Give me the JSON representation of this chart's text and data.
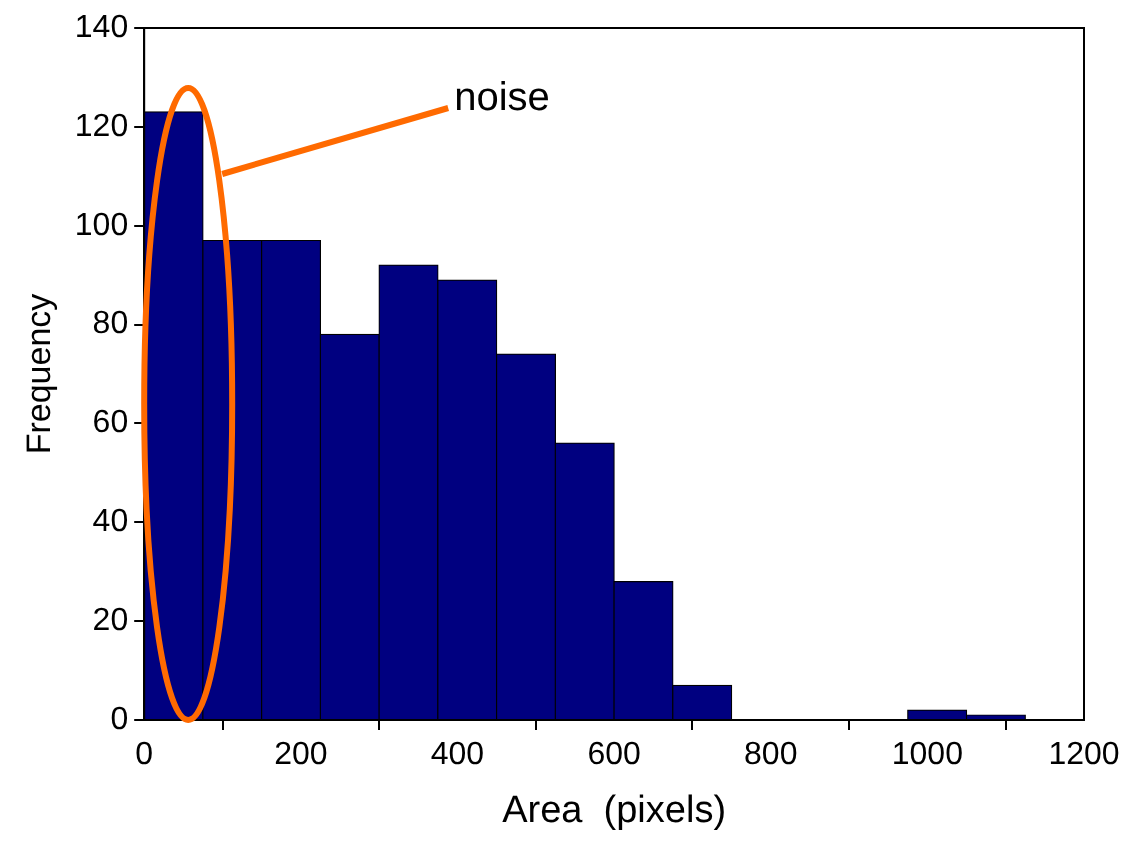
{
  "chart_data": {
    "type": "histogram",
    "xlabel": "Area  (pixels)",
    "ylabel": "Frequency",
    "bins": [
      0,
      75,
      150,
      225,
      300,
      375,
      450,
      525,
      600,
      675,
      750,
      825,
      900,
      975,
      1050,
      1125
    ],
    "values": [
      123,
      97,
      97,
      78,
      92,
      89,
      74,
      56,
      28,
      7,
      0,
      0,
      0,
      2,
      1
    ],
    "color": "#000080",
    "xlim": [
      0,
      1200
    ],
    "xticks": [
      0,
      200,
      400,
      600,
      800,
      1000,
      1200
    ],
    "ylim": [
      0,
      140
    ],
    "yticks": [
      0,
      20,
      40,
      60,
      80,
      100,
      120,
      140
    ],
    "grid": false,
    "annotations": [
      "noise"
    ]
  }
}
